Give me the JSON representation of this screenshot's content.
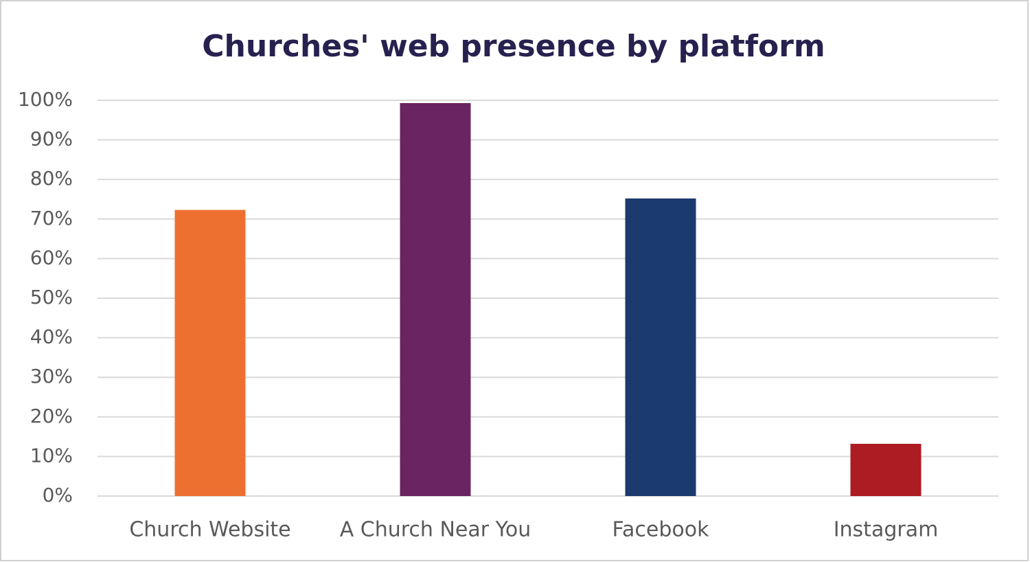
{
  "chart_data": {
    "type": "bar",
    "title": "Churches' web presence by platform",
    "categories": [
      "Church Website",
      "A Church Near You",
      "Facebook",
      "Instagram"
    ],
    "values": [
      72.3,
      99.3,
      75.2,
      13.2
    ],
    "colors": [
      "#ed7031",
      "#6a2461",
      "#1b3a6e",
      "#ac1c22"
    ],
    "ylim": [
      0,
      100
    ],
    "yticks": [
      {
        "value": 0,
        "label": "0%"
      },
      {
        "value": 10,
        "label": "10%"
      },
      {
        "value": 20,
        "label": "20%"
      },
      {
        "value": 30,
        "label": "30%"
      },
      {
        "value": 40,
        "label": "40%"
      },
      {
        "value": 50,
        "label": "50%"
      },
      {
        "value": 60,
        "label": "60%"
      },
      {
        "value": 70,
        "label": "70%"
      },
      {
        "value": 80,
        "label": "80%"
      },
      {
        "value": 90,
        "label": "90%"
      },
      {
        "value": 100,
        "label": "100%"
      }
    ],
    "grid": true
  }
}
